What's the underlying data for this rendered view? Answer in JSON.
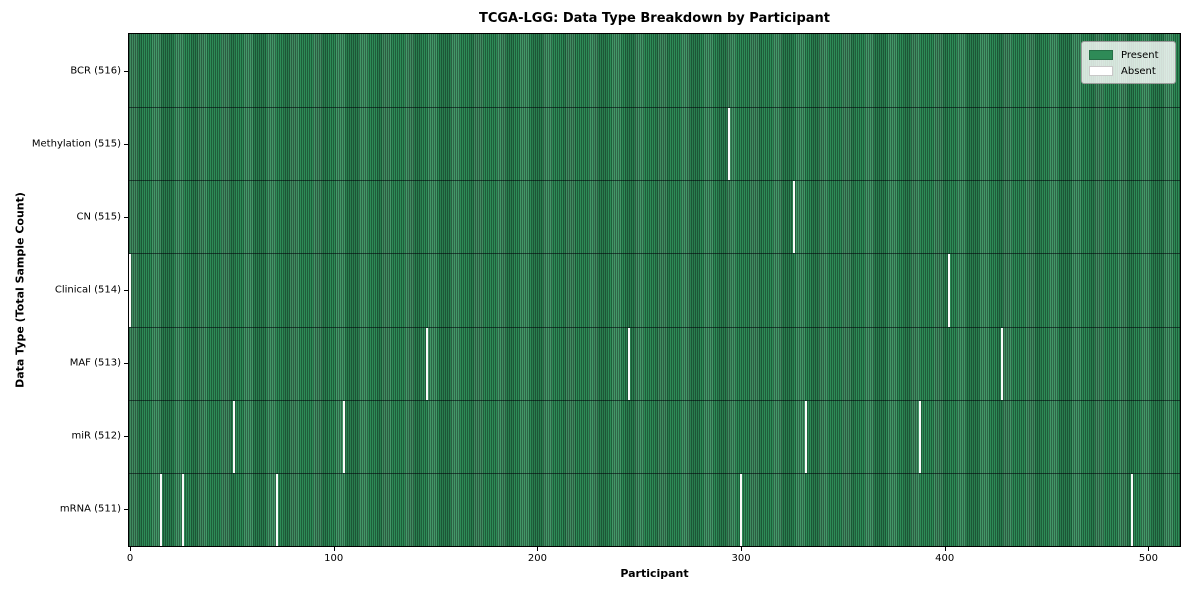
{
  "chart_data": {
    "type": "heatmap",
    "title": "TCGA-LGG: Data Type Breakdown by Participant",
    "xlabel": "Participant",
    "ylabel": "Data Type (Total Sample Count)",
    "n_participants": 516,
    "x_ticks": [
      0,
      100,
      200,
      300,
      400,
      500
    ],
    "grid": false,
    "legend_position": "upper right",
    "colors": {
      "present": "#2e8b57",
      "absent": "#fafafa"
    },
    "legend": [
      {
        "label": "Present",
        "color": "#2e8b57"
      },
      {
        "label": "Absent",
        "color": "#ffffff"
      }
    ],
    "rows": [
      {
        "label": "BCR (516)",
        "data_type": "BCR",
        "total_samples": 516,
        "absent_participants": []
      },
      {
        "label": "Methylation (515)",
        "data_type": "Methylation",
        "total_samples": 515,
        "absent_participants": [
          294
        ]
      },
      {
        "label": "CN (515)",
        "data_type": "CN",
        "total_samples": 515,
        "absent_participants": [
          326
        ]
      },
      {
        "label": "Clinical (514)",
        "data_type": "Clinical",
        "total_samples": 514,
        "absent_participants": [
          0,
          402
        ]
      },
      {
        "label": "MAF (513)",
        "data_type": "MAF",
        "total_samples": 513,
        "absent_participants": [
          146,
          245,
          428
        ]
      },
      {
        "label": "miR (512)",
        "data_type": "miR",
        "total_samples": 512,
        "absent_participants": [
          51,
          105,
          332,
          388
        ]
      },
      {
        "label": "mRNA (511)",
        "data_type": "mRNA",
        "total_samples": 511,
        "absent_participants": [
          15,
          26,
          72,
          300,
          492
        ]
      }
    ]
  }
}
